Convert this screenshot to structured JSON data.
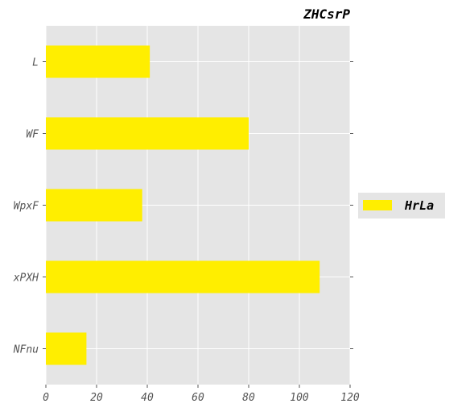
{
  "chart_data": {
    "type": "bar",
    "orientation": "horizontal",
    "title": "ZHCsrP",
    "title_align": "right",
    "xlabel": "",
    "ylabel": "",
    "categories": [
      "L",
      "WF",
      "WpxF",
      "xPXH",
      "NFnu"
    ],
    "series": [
      {
        "name": "HrLa",
        "values": [
          41,
          80,
          38,
          108,
          16
        ],
        "color": "#ffee00"
      }
    ],
    "xlim": [
      0,
      120
    ],
    "xticks": [
      "0",
      "20",
      "40",
      "60",
      "80",
      "100",
      "120"
    ],
    "grid": true,
    "legend_position": "right",
    "colors": {
      "background": "#e5e5e5",
      "grid": "#ffffff",
      "tick_label": "#555555",
      "bar": "#ffee00"
    }
  }
}
